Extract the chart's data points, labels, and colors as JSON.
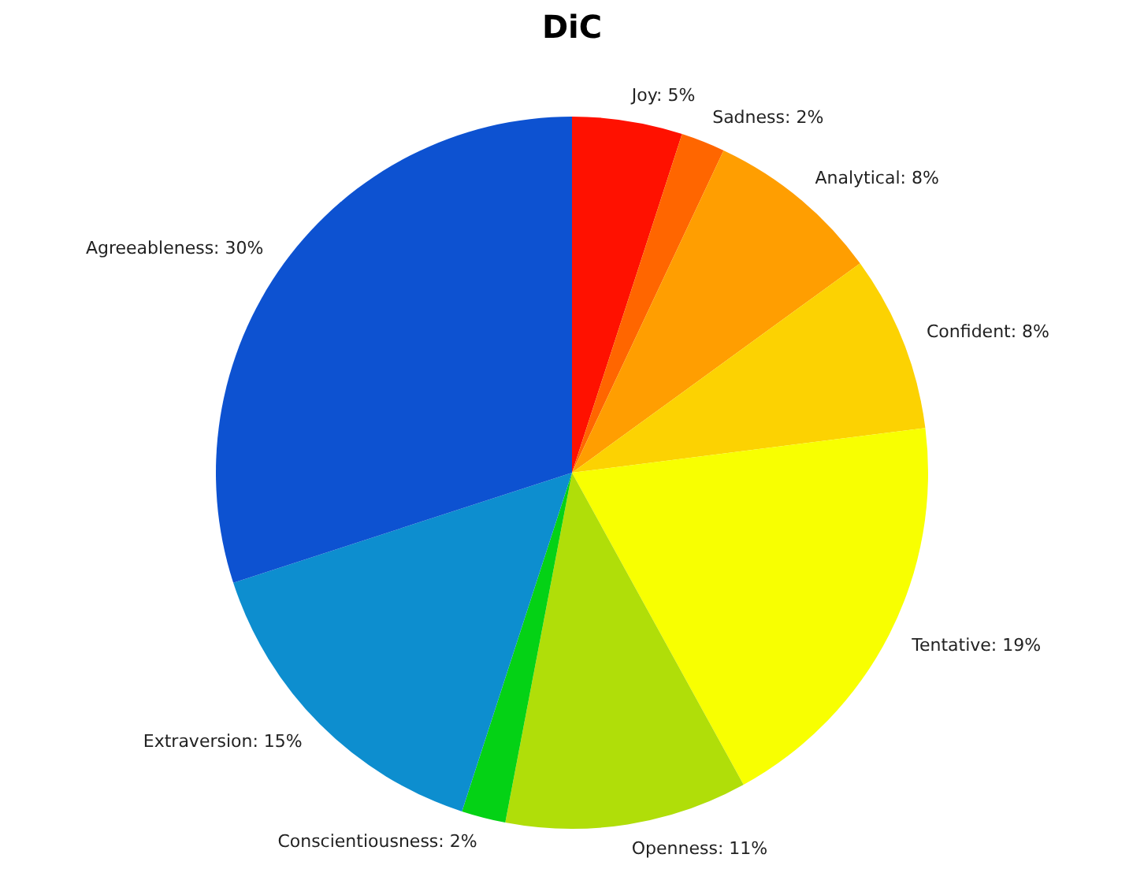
{
  "chart_data": {
    "type": "pie",
    "title": "DiC",
    "categories": [
      "Joy",
      "Sadness",
      "Analytical",
      "Confident",
      "Tentative",
      "Openness",
      "Conscientiousness",
      "Extraversion",
      "Agreeableness"
    ],
    "values": [
      5,
      2,
      8,
      8,
      19,
      11,
      2,
      15,
      30
    ],
    "value_labels": [
      "5%",
      "2%",
      "8%",
      "8%",
      "19%",
      "11%",
      "2%",
      "15%",
      "30%"
    ],
    "colors": [
      "#ff1100",
      "#ff6600",
      "#ff9e01",
      "#fcd202",
      "#f8ff01",
      "#b0de09",
      "#04d215",
      "#0d8ecf",
      "#0d52d1"
    ]
  }
}
